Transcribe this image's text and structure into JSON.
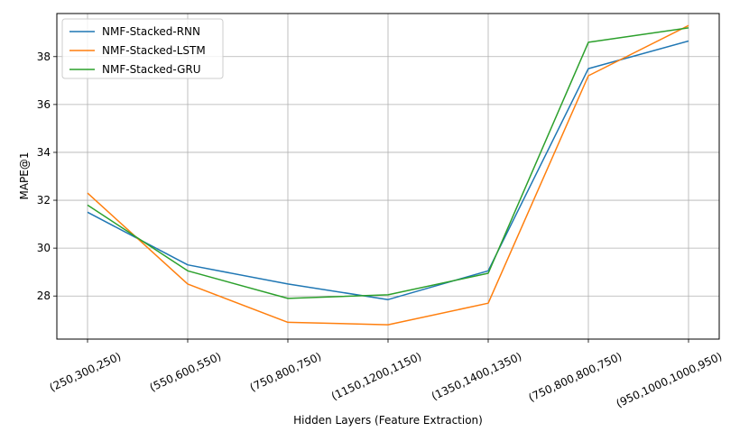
{
  "chart_data": {
    "type": "line",
    "title": "",
    "xlabel": "Hidden Layers (Feature Extraction)",
    "ylabel": "MAPE@1",
    "categories": [
      "(250,300,250)",
      "(550,600,550)",
      "(750,800,750)",
      "(1150,1200,1150)",
      "(1350,1400,1350)",
      "(750,800,800,750)",
      "(950,1000,1000,950)"
    ],
    "yticks": [
      28,
      30,
      32,
      34,
      36,
      38
    ],
    "ylim": [
      26.2,
      39.8
    ],
    "grid": true,
    "legend_position": "upper-left",
    "series": [
      {
        "name": "NMF-Stacked-RNN",
        "color": "#1f77b4",
        "values": [
          31.5,
          29.3,
          28.5,
          27.85,
          29.05,
          37.5,
          38.65
        ]
      },
      {
        "name": "NMF-Stacked-LSTM",
        "color": "#ff7f0e",
        "values": [
          32.3,
          28.5,
          26.9,
          26.8,
          27.7,
          37.2,
          39.3
        ]
      },
      {
        "name": "NMF-Stacked-GRU",
        "color": "#2ca02c",
        "values": [
          31.8,
          29.05,
          27.9,
          28.05,
          28.95,
          38.6,
          39.2
        ]
      }
    ]
  }
}
